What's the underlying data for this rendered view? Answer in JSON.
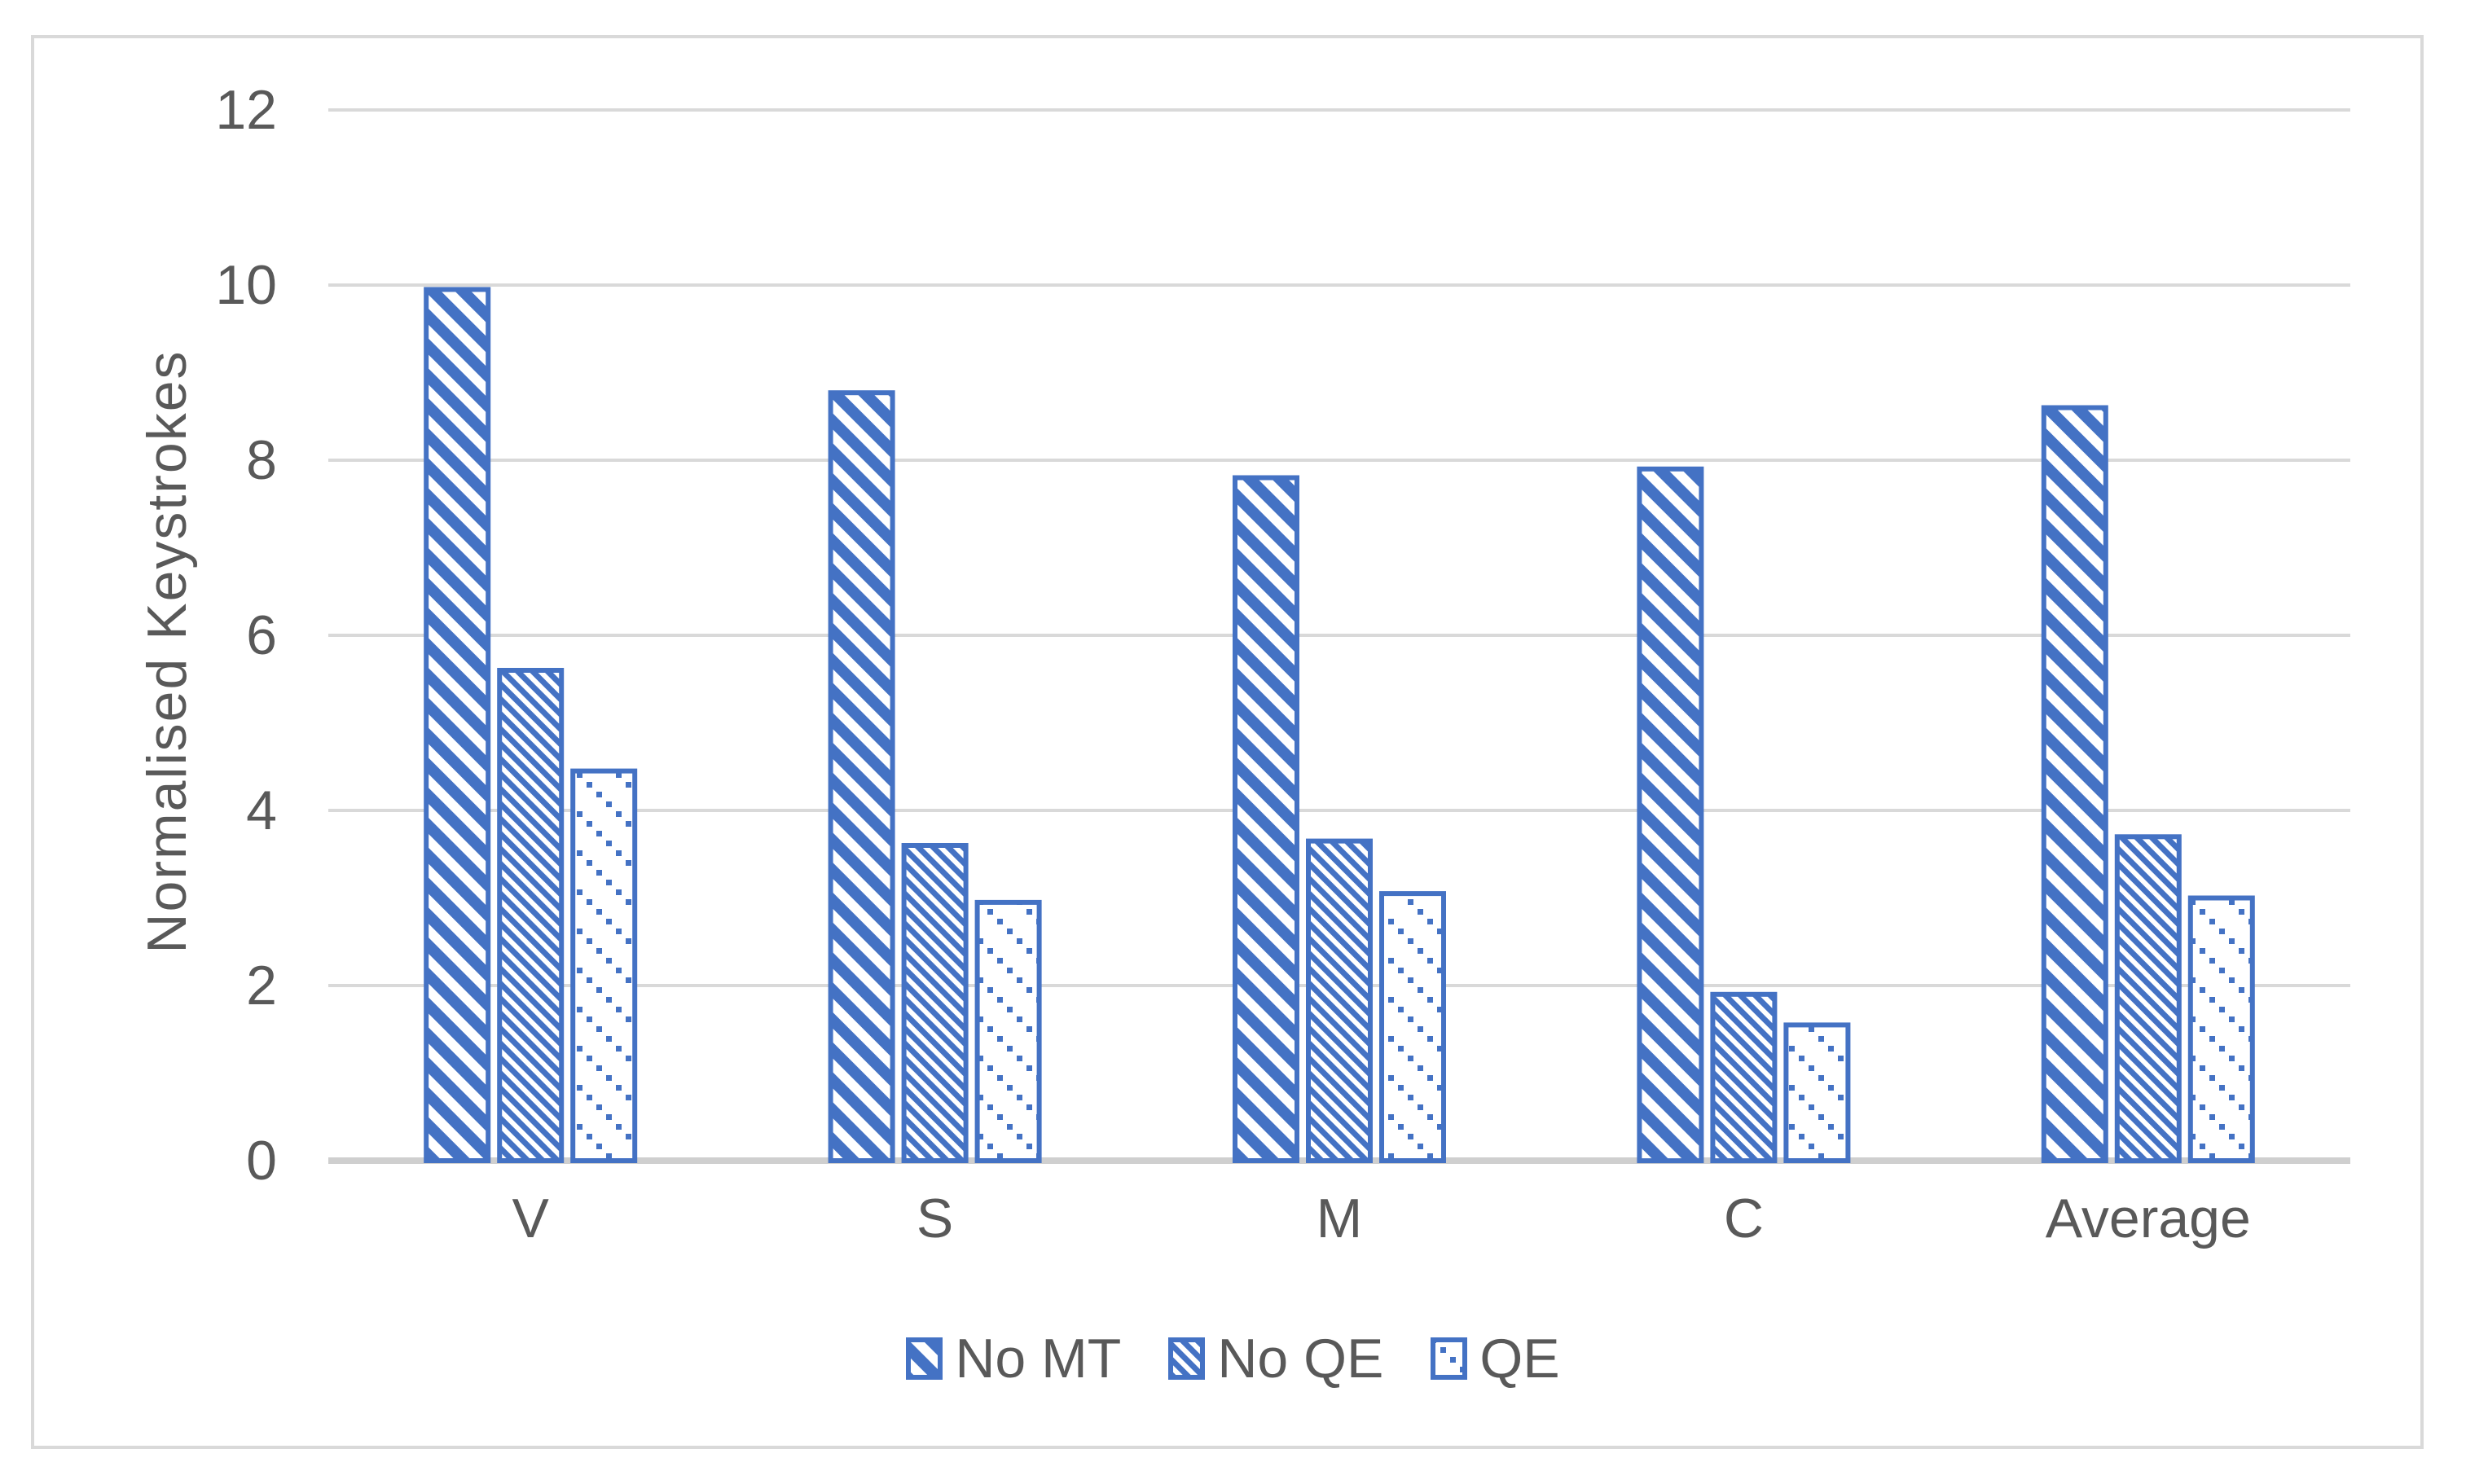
{
  "chart_data": {
    "type": "bar",
    "title": "",
    "categories": [
      "V",
      "S",
      "M",
      "C",
      "Average"
    ],
    "series": [
      {
        "name": "No MT",
        "pattern": "wide-downward-diagonal",
        "values": [
          9.95,
          8.77,
          7.8,
          7.9,
          8.6
        ]
      },
      {
        "name": "No QE",
        "pattern": "dense-downward-diagonal",
        "values": [
          5.6,
          3.6,
          3.65,
          1.9,
          3.7
        ]
      },
      {
        "name": "QE",
        "pattern": "dotted-downward-diagonal",
        "values": [
          4.45,
          2.95,
          3.05,
          1.55,
          3.0
        ]
      }
    ],
    "xlabel": "",
    "ylabel": "Normalised Keystrokes",
    "ylim": [
      0,
      12
    ],
    "yticks": [
      0,
      2,
      4,
      6,
      8,
      10,
      12
    ],
    "grid": true,
    "legend_position": "bottom-center",
    "bar_color": "#4472C4",
    "pattern_background": "#FFFFFF",
    "gridline_color": "#D9D9D9",
    "axis_line_color": "#CFCFCF",
    "text_color": "#595959",
    "chart_border_color": "#D9D9D9"
  }
}
